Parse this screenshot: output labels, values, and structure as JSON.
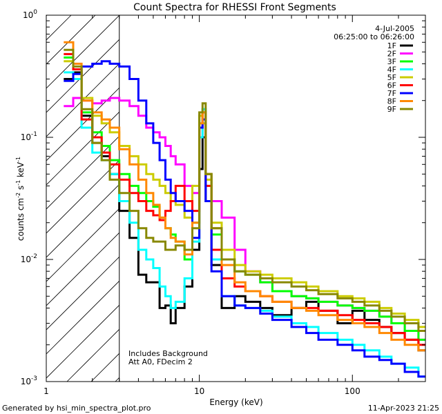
{
  "chart_data": {
    "type": "line",
    "title": "Count Spectra for RHESSI Front Segments",
    "xlabel": "Energy (keV)",
    "ylabel_parts": [
      "counts cm",
      "-2",
      " s",
      "-1",
      " keV",
      "-1"
    ],
    "xscale": "log",
    "yscale": "log",
    "xlim": [
      1,
      300
    ],
    "ylim": [
      0.001,
      1
    ],
    "x_ticks": [
      {
        "value": 1,
        "label": "1"
      },
      {
        "value": 10,
        "label": "10"
      },
      {
        "value": 100,
        "label": "100"
      }
    ],
    "y_ticks": [
      {
        "value": 0.001,
        "base": "10",
        "exp": "-3"
      },
      {
        "value": 0.01,
        "base": "10",
        "exp": "-2"
      },
      {
        "value": 0.1,
        "base": "10",
        "exp": "-1"
      },
      {
        "value": 1,
        "base": "10",
        "exp": "0"
      }
    ],
    "header_date": "4-Jul-2005",
    "header_time": "06:25:00 to 06:26:00",
    "annotation_lines": [
      "Includes Background",
      "Att A0, FDecim 2"
    ],
    "hatched_region_max_keV": 3,
    "series": [
      {
        "name": "1F",
        "color": "#000000",
        "x": [
          1.3,
          1.5,
          1.7,
          2.0,
          2.3,
          2.6,
          3.0,
          3.5,
          4.0,
          4.5,
          5.0,
          5.5,
          6.0,
          6.5,
          7.0,
          8.0,
          9.0,
          10.0,
          10.5,
          11.0,
          12.0,
          14,
          17,
          20,
          25,
          30,
          40,
          50,
          60,
          80,
          100,
          120,
          150,
          180,
          220,
          270
        ],
        "y": [
          0.3,
          0.34,
          0.15,
          0.09,
          0.07,
          0.05,
          0.025,
          0.015,
          0.0075,
          0.0065,
          0.0065,
          0.004,
          0.0042,
          0.003,
          0.004,
          0.006,
          0.012,
          0.055,
          0.1,
          0.03,
          0.009,
          0.004,
          0.005,
          0.0045,
          0.004,
          0.0035,
          0.004,
          0.0045,
          0.0038,
          0.003,
          0.0038,
          0.0032,
          0.0028,
          0.0025,
          0.0022,
          0.0018
        ]
      },
      {
        "name": "2F",
        "color": "#ff00ff",
        "x": [
          1.3,
          1.5,
          1.7,
          2.0,
          2.3,
          2.6,
          3.0,
          3.5,
          4.0,
          4.5,
          5.0,
          5.5,
          6.0,
          6.5,
          7.0,
          8.0,
          9.0,
          10.0,
          10.5,
          11.0,
          12.0,
          14,
          17,
          20,
          25,
          30,
          40,
          50,
          60,
          80,
          100,
          120,
          150,
          180,
          220,
          270
        ],
        "y": [
          0.18,
          0.21,
          0.2,
          0.19,
          0.2,
          0.21,
          0.2,
          0.18,
          0.15,
          0.12,
          0.11,
          0.1,
          0.085,
          0.07,
          0.06,
          0.04,
          0.035,
          0.1,
          0.16,
          0.05,
          0.03,
          0.022,
          0.012,
          0.008,
          0.0065,
          0.0055,
          0.005,
          0.0048,
          0.0045,
          0.0042,
          0.004,
          0.0038,
          0.0034,
          0.003,
          0.0026,
          0.0022
        ]
      },
      {
        "name": "3F",
        "color": "#00ff00",
        "x": [
          1.3,
          1.5,
          1.7,
          2.0,
          2.3,
          2.6,
          3.0,
          3.5,
          4.0,
          4.5,
          5.0,
          5.5,
          6.0,
          6.5,
          7.0,
          8.0,
          9.0,
          10.0,
          10.5,
          11.0,
          12.0,
          14,
          17,
          20,
          25,
          30,
          40,
          50,
          60,
          80,
          100,
          120,
          150,
          180,
          220,
          270
        ],
        "y": [
          0.45,
          0.36,
          0.16,
          0.11,
          0.085,
          0.065,
          0.05,
          0.04,
          0.035,
          0.03,
          0.027,
          0.022,
          0.018,
          0.016,
          0.014,
          0.01,
          0.02,
          0.15,
          0.17,
          0.05,
          0.016,
          0.01,
          0.008,
          0.0075,
          0.0065,
          0.0055,
          0.005,
          0.0048,
          0.0045,
          0.0042,
          0.004,
          0.0038,
          0.0034,
          0.003,
          0.0026,
          0.0022
        ]
      },
      {
        "name": "4F",
        "color": "#00ffff",
        "x": [
          1.3,
          1.5,
          1.7,
          2.0,
          2.3,
          2.6,
          3.0,
          3.5,
          4.0,
          4.5,
          5.0,
          5.5,
          6.0,
          6.5,
          7.0,
          8.0,
          9.0,
          10.0,
          10.5,
          11.0,
          12.0,
          14,
          17,
          20,
          25,
          30,
          40,
          50,
          60,
          80,
          100,
          120,
          150,
          180,
          220,
          270
        ],
        "y": [
          0.34,
          0.3,
          0.12,
          0.075,
          0.065,
          0.05,
          0.03,
          0.02,
          0.012,
          0.01,
          0.0085,
          0.006,
          0.005,
          0.004,
          0.0045,
          0.007,
          0.014,
          0.1,
          0.17,
          0.04,
          0.01,
          0.005,
          0.0042,
          0.004,
          0.0038,
          0.0034,
          0.003,
          0.0028,
          0.0025,
          0.0022,
          0.002,
          0.0018,
          0.0016,
          0.0014,
          0.0013,
          0.0011
        ]
      },
      {
        "name": "5F",
        "color": "#cccc00",
        "x": [
          1.3,
          1.5,
          1.7,
          2.0,
          2.3,
          2.6,
          3.0,
          3.5,
          4.0,
          4.5,
          5.0,
          5.5,
          6.0,
          6.5,
          7.0,
          8.0,
          9.0,
          10.0,
          10.5,
          11.0,
          12.0,
          14,
          17,
          20,
          25,
          30,
          40,
          50,
          60,
          80,
          100,
          120,
          150,
          180,
          220,
          270
        ],
        "y": [
          0.42,
          0.36,
          0.21,
          0.15,
          0.13,
          0.11,
          0.085,
          0.07,
          0.06,
          0.05,
          0.045,
          0.04,
          0.035,
          0.03,
          0.028,
          0.022,
          0.04,
          0.15,
          0.13,
          0.045,
          0.02,
          0.012,
          0.009,
          0.008,
          0.0075,
          0.007,
          0.0065,
          0.006,
          0.0055,
          0.005,
          0.0048,
          0.0045,
          0.004,
          0.0036,
          0.0032,
          0.0028
        ]
      },
      {
        "name": "6F",
        "color": "#ff0000",
        "x": [
          1.3,
          1.5,
          1.7,
          2.0,
          2.3,
          2.6,
          3.0,
          3.5,
          4.0,
          4.5,
          5.0,
          5.5,
          6.0,
          6.5,
          7.0,
          8.0,
          9.0,
          10.0,
          10.5,
          11.0,
          12.0,
          14,
          17,
          20,
          25,
          30,
          40,
          50,
          60,
          80,
          100,
          120,
          150,
          180,
          220,
          270
        ],
        "y": [
          0.48,
          0.36,
          0.14,
          0.1,
          0.075,
          0.06,
          0.045,
          0.035,
          0.03,
          0.025,
          0.023,
          0.021,
          0.025,
          0.03,
          0.04,
          0.03,
          0.025,
          0.12,
          0.16,
          0.04,
          0.012,
          0.007,
          0.006,
          0.0055,
          0.005,
          0.0045,
          0.004,
          0.004,
          0.0038,
          0.0035,
          0.0032,
          0.003,
          0.0028,
          0.0025,
          0.0022,
          0.002
        ]
      },
      {
        "name": "7F",
        "color": "#0000ff",
        "x": [
          1.3,
          1.5,
          1.7,
          2.0,
          2.3,
          2.6,
          3.0,
          3.5,
          4.0,
          4.5,
          5.0,
          5.5,
          6.0,
          6.5,
          7.0,
          8.0,
          9.0,
          10.0,
          10.5,
          11.0,
          12.0,
          14,
          17,
          20,
          25,
          30,
          40,
          50,
          60,
          80,
          100,
          120,
          150,
          180,
          220,
          270
        ],
        "y": [
          0.29,
          0.33,
          0.38,
          0.4,
          0.42,
          0.4,
          0.38,
          0.3,
          0.2,
          0.13,
          0.09,
          0.065,
          0.045,
          0.035,
          0.03,
          0.025,
          0.015,
          0.12,
          0.14,
          0.03,
          0.008,
          0.005,
          0.0042,
          0.004,
          0.0036,
          0.0032,
          0.0028,
          0.0025,
          0.0022,
          0.002,
          0.0018,
          0.0016,
          0.0015,
          0.0014,
          0.0012,
          0.0011
        ]
      },
      {
        "name": "8F",
        "color": "#ff8800",
        "x": [
          1.3,
          1.5,
          1.7,
          2.0,
          2.3,
          2.6,
          3.0,
          3.5,
          4.0,
          4.5,
          5.0,
          5.5,
          6.0,
          6.5,
          7.0,
          8.0,
          9.0,
          10.0,
          10.5,
          11.0,
          12.0,
          14,
          17,
          20,
          25,
          30,
          40,
          50,
          60,
          80,
          100,
          120,
          150,
          180,
          220,
          270
        ],
        "y": [
          0.6,
          0.4,
          0.2,
          0.16,
          0.14,
          0.12,
          0.08,
          0.06,
          0.045,
          0.035,
          0.028,
          0.022,
          0.018,
          0.015,
          0.014,
          0.011,
          0.02,
          0.13,
          0.16,
          0.05,
          0.018,
          0.009,
          0.0065,
          0.0055,
          0.005,
          0.0045,
          0.004,
          0.0038,
          0.0035,
          0.0032,
          0.003,
          0.0028,
          0.0025,
          0.0022,
          0.002,
          0.0018
        ]
      },
      {
        "name": "9F",
        "color": "#888800",
        "x": [
          1.3,
          1.5,
          1.7,
          2.0,
          2.3,
          2.6,
          3.0,
          3.5,
          4.0,
          4.5,
          5.0,
          5.5,
          6.0,
          6.5,
          7.0,
          8.0,
          9.0,
          10.0,
          10.5,
          11.0,
          12.0,
          14,
          17,
          20,
          25,
          30,
          40,
          50,
          60,
          80,
          100,
          120,
          150,
          180,
          220,
          270
        ],
        "y": [
          0.52,
          0.38,
          0.17,
          0.09,
          0.065,
          0.045,
          0.035,
          0.025,
          0.018,
          0.015,
          0.014,
          0.014,
          0.012,
          0.012,
          0.013,
          0.012,
          0.018,
          0.16,
          0.19,
          0.05,
          0.018,
          0.01,
          0.008,
          0.0075,
          0.007,
          0.0065,
          0.006,
          0.0056,
          0.0052,
          0.0048,
          0.0045,
          0.0042,
          0.0038,
          0.0034,
          0.003,
          0.0026
        ]
      }
    ]
  },
  "footer": {
    "generated_by": "Generated by hsi_min_spectra_plot.pro",
    "timestamp": "11-Apr-2023 21:25"
  }
}
